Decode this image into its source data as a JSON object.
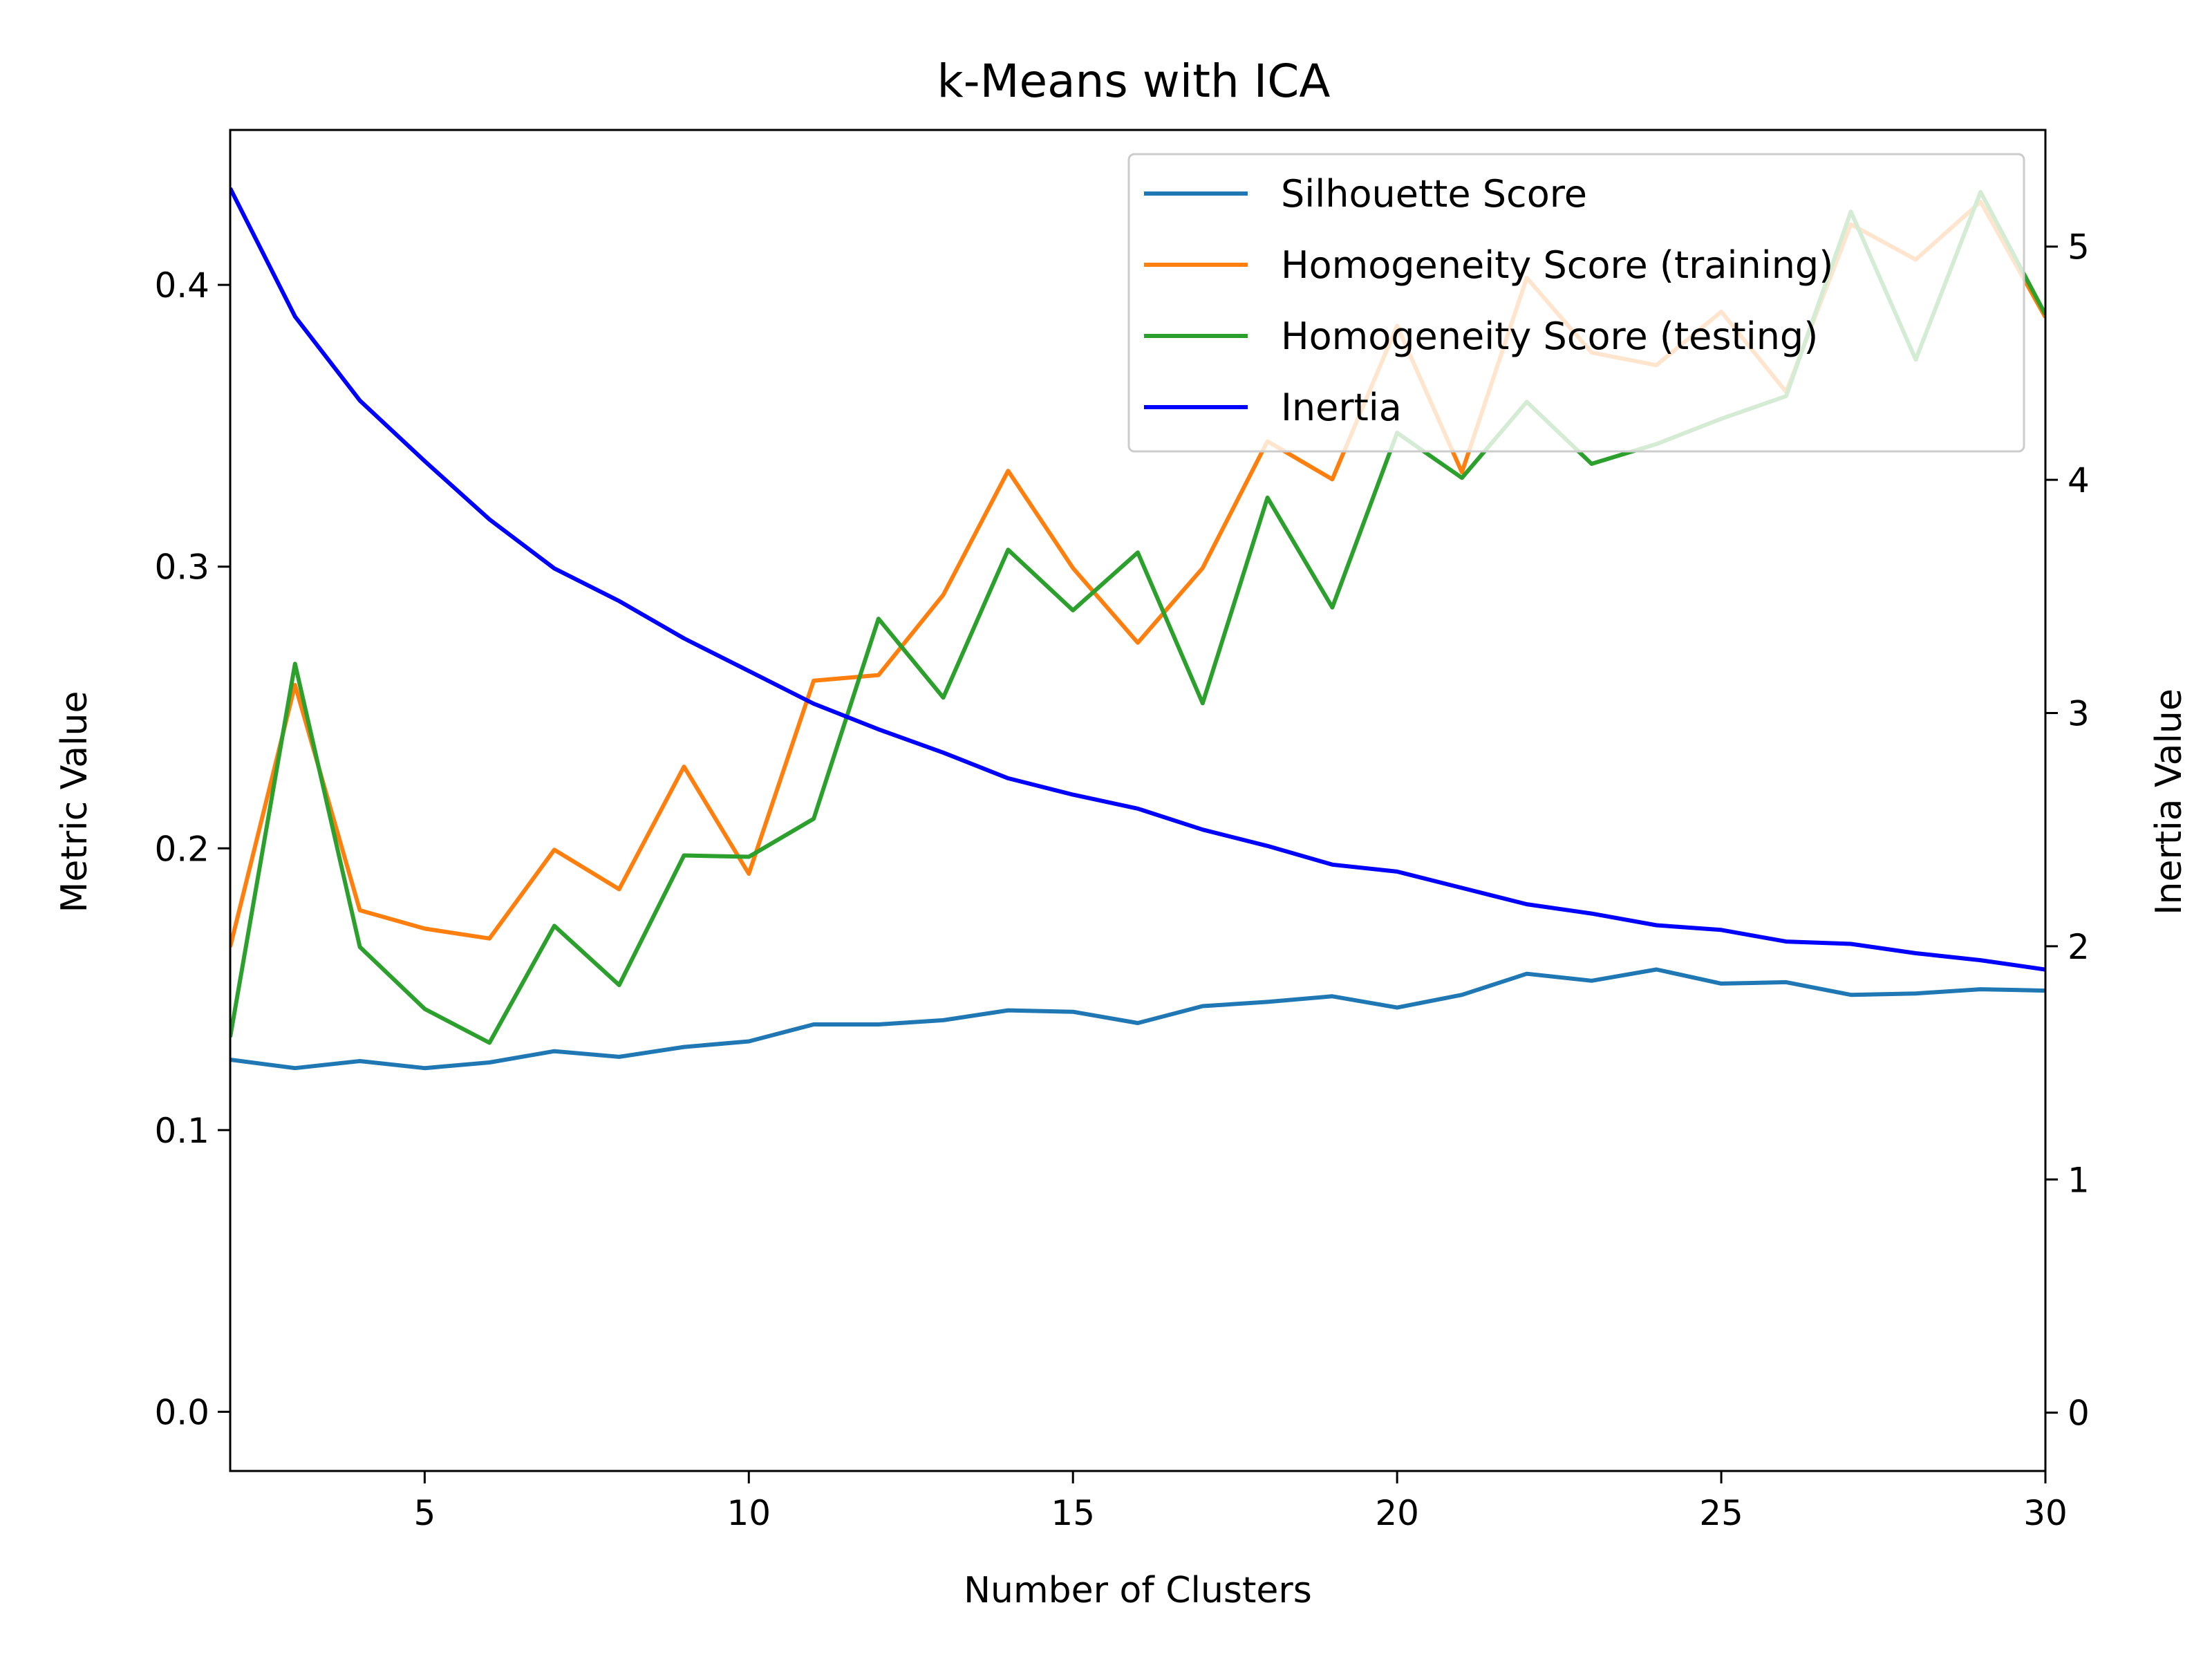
{
  "chart_data": {
    "type": "line",
    "title": "k-Means with ICA",
    "xlabel": "Number of Clusters",
    "ylabel": "Metric Value",
    "y2label": "Inertia Value",
    "xlim": [
      2,
      30
    ],
    "ylim": [
      -0.021,
      0.455
    ],
    "y2lim": [
      -0.25,
      5.5
    ],
    "xticks": [
      5,
      10,
      15,
      20,
      25,
      30
    ],
    "yticks": [
      0.0,
      0.1,
      0.2,
      0.3,
      0.4
    ],
    "ytick_labels": [
      "0.0",
      "0.1",
      "0.2",
      "0.3",
      "0.4"
    ],
    "y2ticks": [
      0,
      1,
      2,
      3,
      4,
      5
    ],
    "grid": false,
    "legend_position": "top-right",
    "x": [
      2,
      3,
      4,
      5,
      6,
      7,
      8,
      9,
      10,
      11,
      12,
      13,
      14,
      15,
      16,
      17,
      18,
      19,
      20,
      21,
      22,
      23,
      24,
      25,
      26,
      27,
      28,
      29,
      30
    ],
    "series": [
      {
        "name": "Silhouette Score",
        "axis": "left",
        "color": "#1f77b4",
        "values": [
          0.125,
          0.122,
          0.1245,
          0.122,
          0.124,
          0.128,
          0.126,
          0.1295,
          0.1315,
          0.1375,
          0.1375,
          0.139,
          0.1425,
          0.142,
          0.138,
          0.144,
          0.1455,
          0.1475,
          0.1435,
          0.148,
          0.1555,
          0.153,
          0.157,
          0.152,
          0.1525,
          0.148,
          0.1485,
          0.15,
          0.1495
        ]
      },
      {
        "name": "Homogeneity Score (training)",
        "axis": "left",
        "color": "#ff7f0e",
        "values": [
          0.165,
          0.258,
          0.178,
          0.1715,
          0.168,
          0.1995,
          0.1855,
          0.229,
          0.191,
          0.2595,
          0.2615,
          0.29,
          0.334,
          0.2995,
          0.273,
          0.2995,
          0.3445,
          0.331,
          0.3855,
          0.3335,
          0.4025,
          0.376,
          0.3715,
          0.3905,
          0.362,
          0.4215,
          0.409,
          0.4295,
          0.3885
        ]
      },
      {
        "name": "Homogeneity Score (testing)",
        "axis": "left",
        "color": "#2ca02c",
        "values": [
          0.133,
          0.2655,
          0.165,
          0.143,
          0.131,
          0.1725,
          0.1515,
          0.1975,
          0.197,
          0.2105,
          0.2815,
          0.2535,
          0.306,
          0.2845,
          0.305,
          0.2515,
          0.3245,
          0.2855,
          0.3475,
          0.3315,
          0.3585,
          0.3365,
          0.3435,
          0.3525,
          0.3605,
          0.426,
          0.3735,
          0.433,
          0.3895
        ]
      },
      {
        "name": "Inertia",
        "axis": "right",
        "color": "#0000ff",
        "values": [
          5.25,
          4.7,
          4.34,
          4.08,
          3.83,
          3.62,
          3.48,
          3.32,
          3.18,
          3.04,
          2.93,
          2.83,
          2.72,
          2.65,
          2.59,
          2.5,
          2.43,
          2.35,
          2.32,
          2.25,
          2.18,
          2.14,
          2.09,
          2.07,
          2.02,
          2.01,
          1.97,
          1.94,
          1.9
        ]
      }
    ]
  }
}
